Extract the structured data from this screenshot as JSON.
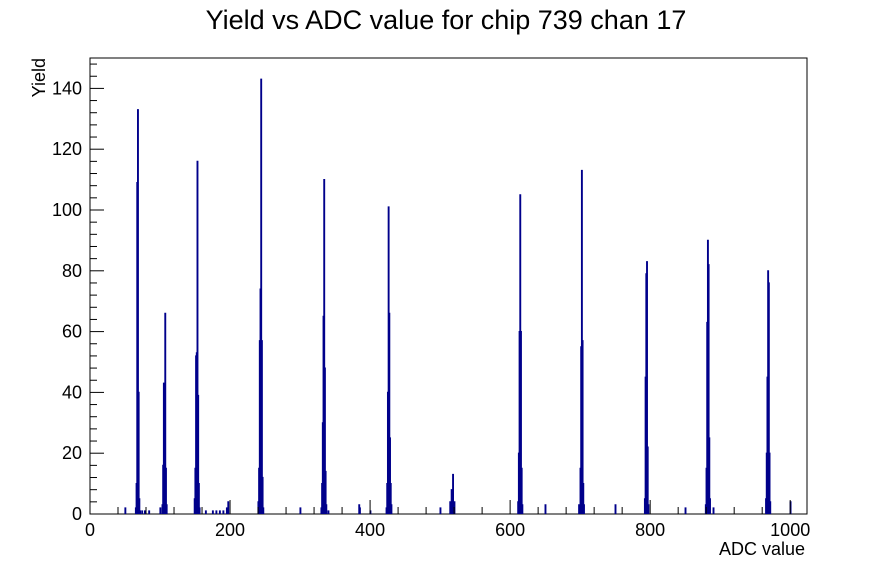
{
  "chart_data": {
    "type": "bar",
    "title": "Yield vs ADC value for chip 739 chan 17",
    "xlabel": "ADC value",
    "ylabel": "Yield",
    "xlim": [
      0,
      1024
    ],
    "ylim": [
      0,
      150
    ],
    "xticks": [
      0,
      200,
      400,
      600,
      800,
      1000
    ],
    "yticks": [
      0,
      20,
      40,
      60,
      80,
      100,
      120,
      140
    ],
    "grid": false,
    "legend": "none",
    "line_color": "#00008b",
    "bins": [
      {
        "x": 50,
        "y": 2
      },
      {
        "x": 65,
        "y": 2
      },
      {
        "x": 66,
        "y": 10
      },
      {
        "x": 67,
        "y": 109
      },
      {
        "x": 68,
        "y": 133
      },
      {
        "x": 69,
        "y": 40
      },
      {
        "x": 70,
        "y": 5
      },
      {
        "x": 71,
        "y": 1
      },
      {
        "x": 74,
        "y": 1
      },
      {
        "x": 78,
        "y": 1
      },
      {
        "x": 84,
        "y": 1
      },
      {
        "x": 100,
        "y": 2
      },
      {
        "x": 103,
        "y": 3
      },
      {
        "x": 104,
        "y": 16
      },
      {
        "x": 105,
        "y": 43
      },
      {
        "x": 106,
        "y": 22
      },
      {
        "x": 107,
        "y": 66
      },
      {
        "x": 108,
        "y": 15
      },
      {
        "x": 109,
        "y": 3
      },
      {
        "x": 149,
        "y": 5
      },
      {
        "x": 150,
        "y": 15
      },
      {
        "x": 151,
        "y": 52
      },
      {
        "x": 152,
        "y": 53
      },
      {
        "x": 153,
        "y": 116
      },
      {
        "x": 154,
        "y": 39
      },
      {
        "x": 155,
        "y": 10
      },
      {
        "x": 156,
        "y": 2
      },
      {
        "x": 165,
        "y": 1
      },
      {
        "x": 175,
        "y": 1
      },
      {
        "x": 180,
        "y": 1
      },
      {
        "x": 185,
        "y": 1
      },
      {
        "x": 190,
        "y": 1
      },
      {
        "x": 195,
        "y": 2
      },
      {
        "x": 197,
        "y": 4
      },
      {
        "x": 240,
        "y": 4
      },
      {
        "x": 241,
        "y": 15
      },
      {
        "x": 242,
        "y": 57
      },
      {
        "x": 243,
        "y": 74
      },
      {
        "x": 244,
        "y": 143
      },
      {
        "x": 245,
        "y": 57
      },
      {
        "x": 246,
        "y": 12
      },
      {
        "x": 247,
        "y": 2
      },
      {
        "x": 300,
        "y": 2
      },
      {
        "x": 330,
        "y": 2
      },
      {
        "x": 331,
        "y": 10
      },
      {
        "x": 332,
        "y": 30
      },
      {
        "x": 333,
        "y": 65
      },
      {
        "x": 334,
        "y": 110
      },
      {
        "x": 335,
        "y": 48
      },
      {
        "x": 336,
        "y": 14
      },
      {
        "x": 337,
        "y": 3
      },
      {
        "x": 340,
        "y": 1
      },
      {
        "x": 384,
        "y": 3
      },
      {
        "x": 385,
        "y": 2
      },
      {
        "x": 400,
        "y": 1
      },
      {
        "x": 423,
        "y": 2
      },
      {
        "x": 424,
        "y": 10
      },
      {
        "x": 425,
        "y": 40
      },
      {
        "x": 426,
        "y": 101
      },
      {
        "x": 427,
        "y": 66
      },
      {
        "x": 428,
        "y": 25
      },
      {
        "x": 429,
        "y": 10
      },
      {
        "x": 430,
        "y": 3
      },
      {
        "x": 500,
        "y": 2
      },
      {
        "x": 514,
        "y": 4
      },
      {
        "x": 516,
        "y": 8
      },
      {
        "x": 518,
        "y": 13
      },
      {
        "x": 520,
        "y": 4
      },
      {
        "x": 611,
        "y": 4
      },
      {
        "x": 612,
        "y": 20
      },
      {
        "x": 613,
        "y": 60
      },
      {
        "x": 614,
        "y": 105
      },
      {
        "x": 615,
        "y": 60
      },
      {
        "x": 616,
        "y": 15
      },
      {
        "x": 617,
        "y": 3
      },
      {
        "x": 650,
        "y": 3
      },
      {
        "x": 698,
        "y": 3
      },
      {
        "x": 700,
        "y": 15
      },
      {
        "x": 701,
        "y": 55
      },
      {
        "x": 702,
        "y": 113
      },
      {
        "x": 703,
        "y": 57
      },
      {
        "x": 704,
        "y": 10
      },
      {
        "x": 705,
        "y": 3
      },
      {
        "x": 750,
        "y": 3
      },
      {
        "x": 792,
        "y": 5
      },
      {
        "x": 793,
        "y": 45
      },
      {
        "x": 794,
        "y": 79
      },
      {
        "x": 795,
        "y": 83
      },
      {
        "x": 796,
        "y": 22
      },
      {
        "x": 797,
        "y": 3
      },
      {
        "x": 850,
        "y": 2
      },
      {
        "x": 879,
        "y": 3
      },
      {
        "x": 880,
        "y": 15
      },
      {
        "x": 881,
        "y": 63
      },
      {
        "x": 882,
        "y": 90
      },
      {
        "x": 883,
        "y": 82
      },
      {
        "x": 884,
        "y": 25
      },
      {
        "x": 885,
        "y": 5
      },
      {
        "x": 890,
        "y": 2
      },
      {
        "x": 965,
        "y": 5
      },
      {
        "x": 966,
        "y": 20
      },
      {
        "x": 967,
        "y": 45
      },
      {
        "x": 968,
        "y": 80
      },
      {
        "x": 969,
        "y": 76
      },
      {
        "x": 970,
        "y": 20
      },
      {
        "x": 971,
        "y": 4
      },
      {
        "x": 1000,
        "y": 4
      }
    ]
  }
}
